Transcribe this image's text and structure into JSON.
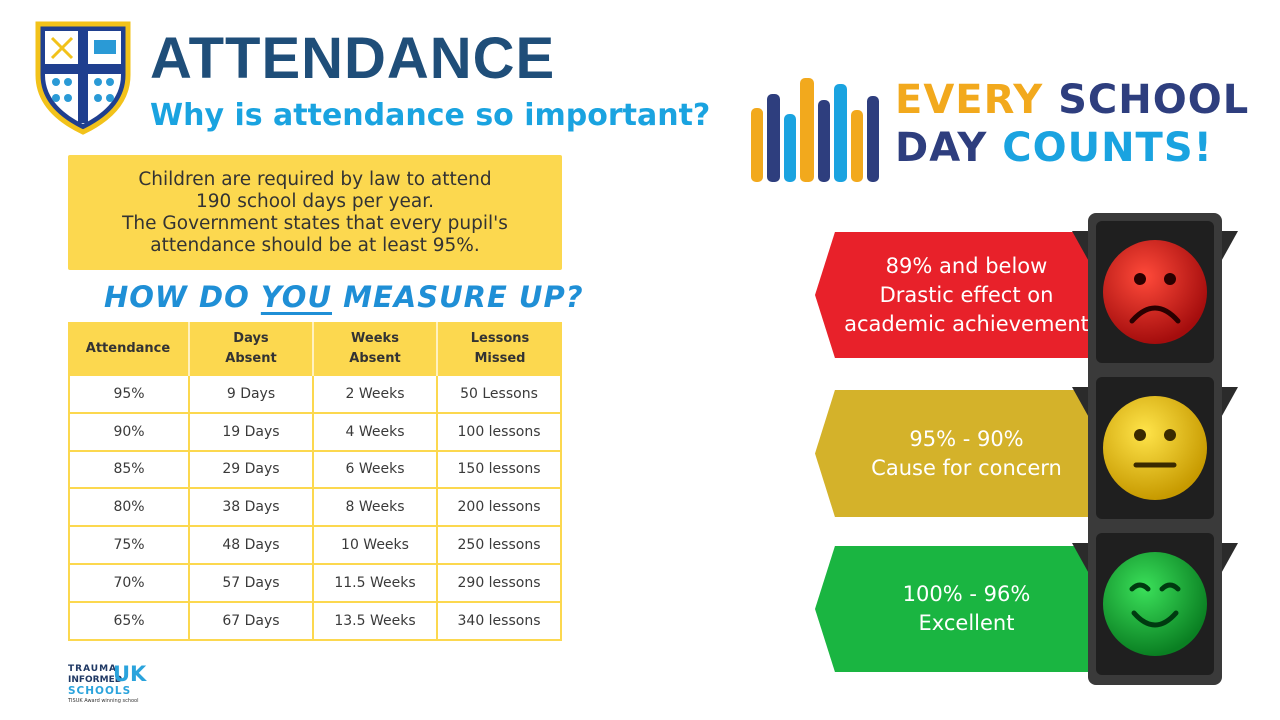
{
  "header": {
    "title": "ATTENDANCE",
    "subtitle": "Why is attendance so important?"
  },
  "law_box": {
    "lines": [
      "Children are required by law to attend",
      "190 school days per year.",
      "The Government states that every pupil's",
      "attendance should be at least 95%."
    ]
  },
  "measure": {
    "before": "HOW DO ",
    "emphasis": "YOU",
    "after": " MEASURE UP?"
  },
  "table": {
    "headers": [
      {
        "line1": "Attendance",
        "line2": ""
      },
      {
        "line1": "Days",
        "line2": "Absent"
      },
      {
        "line1": "Weeks",
        "line2": "Absent"
      },
      {
        "line1": "Lessons",
        "line2": "Missed"
      }
    ],
    "rows": [
      [
        "95%",
        "9 Days",
        "2 Weeks",
        "50 Lessons"
      ],
      [
        "90%",
        "19 Days",
        "4 Weeks",
        "100 lessons"
      ],
      [
        "85%",
        "29 Days",
        "6 Weeks",
        "150 lessons"
      ],
      [
        "80%",
        "38 Days",
        "8 Weeks",
        "200 lessons"
      ],
      [
        "75%",
        "48 Days",
        "10 Weeks",
        "250 lessons"
      ],
      [
        "70%",
        "57 Days",
        "11.5 Weeks",
        "290 lessons"
      ],
      [
        "65%",
        "67 Days",
        "13.5 Weeks",
        "340 lessons"
      ]
    ]
  },
  "tuk_logo": {
    "line1": "TRAUMA",
    "line2": "INFORMED",
    "uk": "UK",
    "line3": "SCHOOLS",
    "line4": "TISUK Award winning school"
  },
  "esdc": {
    "every": "EVERY",
    "school": "SCHOOL",
    "day": "DAY",
    "counts": "COUNTS!"
  },
  "levels": {
    "red": {
      "line1": "89% and below",
      "line2": "Drastic effect on",
      "line3": "academic achievement"
    },
    "amber": {
      "line1": "95% - 90%",
      "line2": "Cause for concern"
    },
    "green": {
      "line1": "100% - 96%",
      "line2": "Excellent"
    }
  },
  "colors": {
    "title": "#1f4e79",
    "subtitle": "#1aa3e0",
    "banner_yellow": "#fcd84f",
    "red": "#e8212a",
    "amber": "#d4b22a",
    "green": "#1ab541"
  }
}
